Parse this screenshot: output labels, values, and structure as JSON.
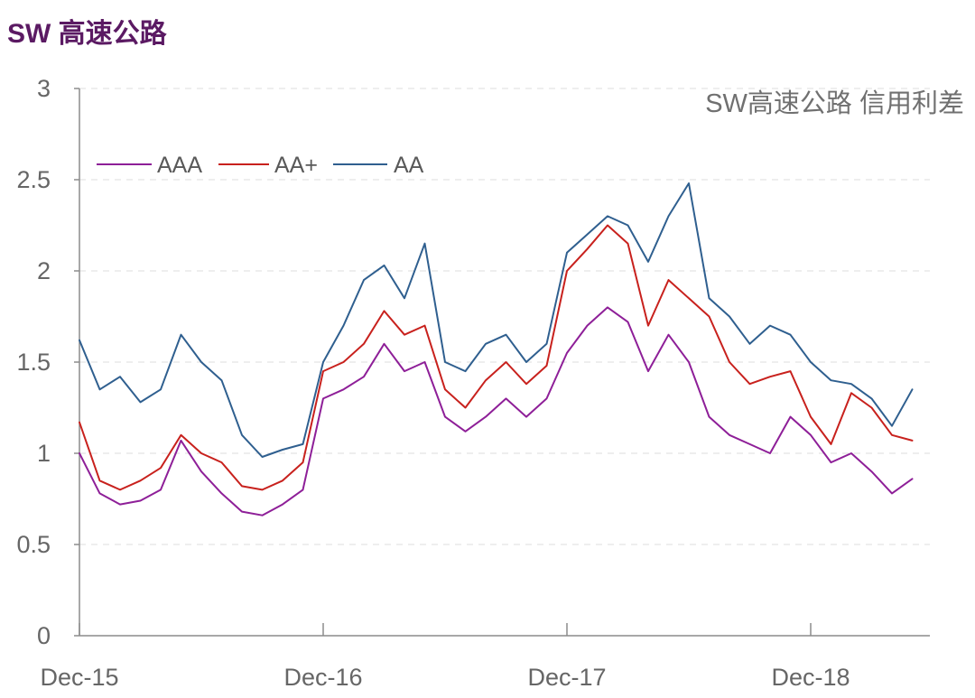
{
  "header": {
    "title": "SW 高速公路"
  },
  "chart_data": {
    "type": "line",
    "title": "SW高速公路 信用利差",
    "xlabel": "",
    "ylabel": "",
    "ylim": [
      0,
      3
    ],
    "yticks": [
      "0",
      "0.5",
      "1",
      "1.5",
      "2",
      "2.5",
      "3"
    ],
    "xticks": [
      "Dec-15",
      "Dec-16",
      "Dec-17",
      "Dec-18"
    ],
    "x_range": [
      "2015-12",
      "2019-05"
    ],
    "grid": "horizontal-dashed",
    "legend_position": "top-left",
    "series": [
      {
        "name": "AAA",
        "color": "#8e1f98",
        "points": [
          [
            "2015-12",
            1.0
          ],
          [
            "2016-01",
            0.78
          ],
          [
            "2016-02",
            0.72
          ],
          [
            "2016-03",
            0.74
          ],
          [
            "2016-04",
            0.8
          ],
          [
            "2016-05",
            1.07
          ],
          [
            "2016-06",
            0.9
          ],
          [
            "2016-07",
            0.78
          ],
          [
            "2016-08",
            0.68
          ],
          [
            "2016-09",
            0.66
          ],
          [
            "2016-10",
            0.72
          ],
          [
            "2016-11",
            0.8
          ],
          [
            "2016-12",
            1.3
          ],
          [
            "2017-01",
            1.35
          ],
          [
            "2017-02",
            1.42
          ],
          [
            "2017-03",
            1.6
          ],
          [
            "2017-04",
            1.45
          ],
          [
            "2017-05",
            1.5
          ],
          [
            "2017-06",
            1.2
          ],
          [
            "2017-07",
            1.12
          ],
          [
            "2017-08",
            1.2
          ],
          [
            "2017-09",
            1.3
          ],
          [
            "2017-10",
            1.2
          ],
          [
            "2017-11",
            1.3
          ],
          [
            "2017-12",
            1.55
          ],
          [
            "2018-01",
            1.7
          ],
          [
            "2018-02",
            1.8
          ],
          [
            "2018-03",
            1.72
          ],
          [
            "2018-04",
            1.45
          ],
          [
            "2018-05",
            1.65
          ],
          [
            "2018-06",
            1.5
          ],
          [
            "2018-07",
            1.2
          ],
          [
            "2018-08",
            1.1
          ],
          [
            "2018-09",
            1.05
          ],
          [
            "2018-10",
            1.0
          ],
          [
            "2018-11",
            1.2
          ],
          [
            "2018-12",
            1.1
          ],
          [
            "2019-01",
            0.95
          ],
          [
            "2019-02",
            1.0
          ],
          [
            "2019-03",
            0.9
          ],
          [
            "2019-04",
            0.78
          ],
          [
            "2019-05",
            0.86
          ]
        ]
      },
      {
        "name": "AA+",
        "color": "#c8211d",
        "points": [
          [
            "2015-12",
            1.17
          ],
          [
            "2016-01",
            0.85
          ],
          [
            "2016-02",
            0.8
          ],
          [
            "2016-03",
            0.85
          ],
          [
            "2016-04",
            0.92
          ],
          [
            "2016-05",
            1.1
          ],
          [
            "2016-06",
            1.0
          ],
          [
            "2016-07",
            0.95
          ],
          [
            "2016-08",
            0.82
          ],
          [
            "2016-09",
            0.8
          ],
          [
            "2016-10",
            0.85
          ],
          [
            "2016-11",
            0.95
          ],
          [
            "2016-12",
            1.45
          ],
          [
            "2017-01",
            1.5
          ],
          [
            "2017-02",
            1.6
          ],
          [
            "2017-03",
            1.78
          ],
          [
            "2017-04",
            1.65
          ],
          [
            "2017-05",
            1.7
          ],
          [
            "2017-06",
            1.35
          ],
          [
            "2017-07",
            1.25
          ],
          [
            "2017-08",
            1.4
          ],
          [
            "2017-09",
            1.5
          ],
          [
            "2017-10",
            1.38
          ],
          [
            "2017-11",
            1.48
          ],
          [
            "2017-12",
            2.0
          ],
          [
            "2018-01",
            2.12
          ],
          [
            "2018-02",
            2.25
          ],
          [
            "2018-03",
            2.15
          ],
          [
            "2018-04",
            1.7
          ],
          [
            "2018-05",
            1.95
          ],
          [
            "2018-06",
            1.85
          ],
          [
            "2018-07",
            1.75
          ],
          [
            "2018-08",
            1.5
          ],
          [
            "2018-09",
            1.38
          ],
          [
            "2018-10",
            1.42
          ],
          [
            "2018-11",
            1.45
          ],
          [
            "2018-12",
            1.2
          ],
          [
            "2019-01",
            1.05
          ],
          [
            "2019-02",
            1.33
          ],
          [
            "2019-03",
            1.25
          ],
          [
            "2019-04",
            1.1
          ],
          [
            "2019-05",
            1.07
          ]
        ]
      },
      {
        "name": "AA",
        "color": "#2f5f8f",
        "points": [
          [
            "2015-12",
            1.62
          ],
          [
            "2016-01",
            1.35
          ],
          [
            "2016-02",
            1.42
          ],
          [
            "2016-03",
            1.28
          ],
          [
            "2016-04",
            1.35
          ],
          [
            "2016-05",
            1.65
          ],
          [
            "2016-06",
            1.5
          ],
          [
            "2016-07",
            1.4
          ],
          [
            "2016-08",
            1.1
          ],
          [
            "2016-09",
            0.98
          ],
          [
            "2016-10",
            1.02
          ],
          [
            "2016-11",
            1.05
          ],
          [
            "2016-12",
            1.5
          ],
          [
            "2017-01",
            1.7
          ],
          [
            "2017-02",
            1.95
          ],
          [
            "2017-03",
            2.03
          ],
          [
            "2017-04",
            1.85
          ],
          [
            "2017-05",
            2.15
          ],
          [
            "2017-06",
            1.5
          ],
          [
            "2017-07",
            1.45
          ],
          [
            "2017-08",
            1.6
          ],
          [
            "2017-09",
            1.65
          ],
          [
            "2017-10",
            1.5
          ],
          [
            "2017-11",
            1.6
          ],
          [
            "2017-12",
            2.1
          ],
          [
            "2018-01",
            2.2
          ],
          [
            "2018-02",
            2.3
          ],
          [
            "2018-03",
            2.25
          ],
          [
            "2018-04",
            2.05
          ],
          [
            "2018-05",
            2.3
          ],
          [
            "2018-06",
            2.48
          ],
          [
            "2018-07",
            1.85
          ],
          [
            "2018-08",
            1.75
          ],
          [
            "2018-09",
            1.6
          ],
          [
            "2018-10",
            1.7
          ],
          [
            "2018-11",
            1.65
          ],
          [
            "2018-12",
            1.5
          ],
          [
            "2019-01",
            1.4
          ],
          [
            "2019-02",
            1.38
          ],
          [
            "2019-03",
            1.3
          ],
          [
            "2019-04",
            1.15
          ],
          [
            "2019-05",
            1.35
          ]
        ]
      }
    ]
  }
}
